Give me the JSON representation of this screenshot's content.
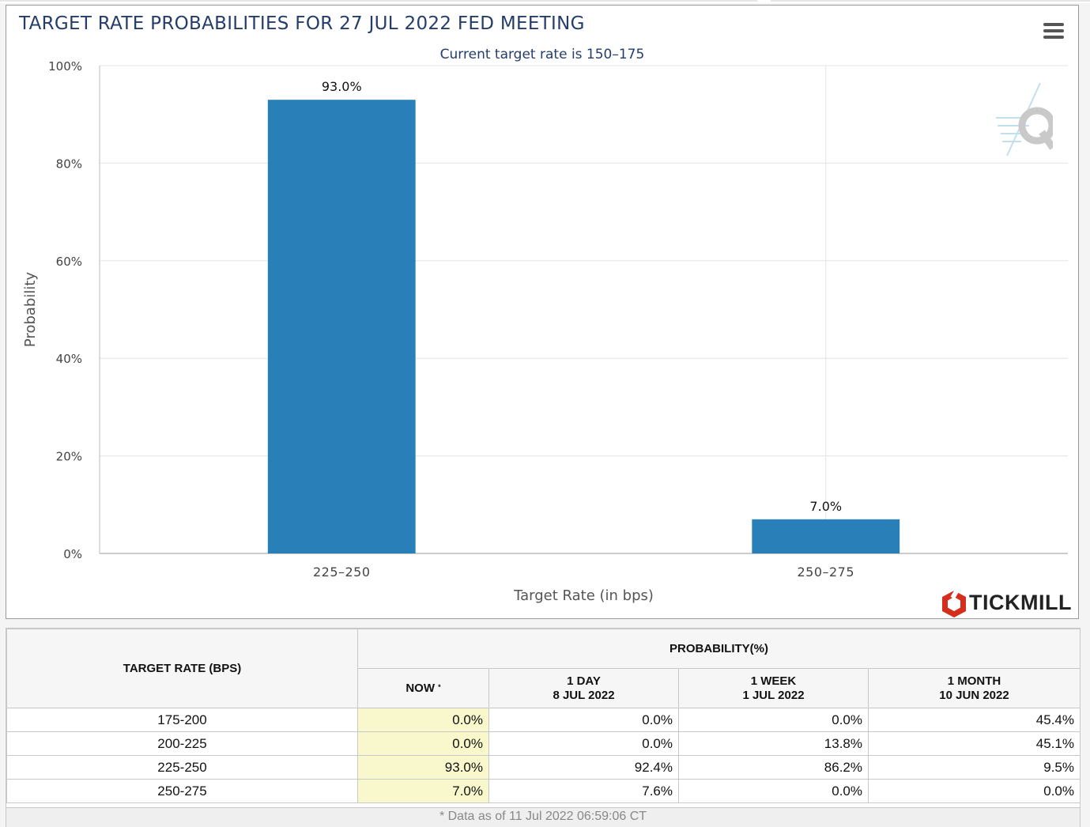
{
  "title": "TARGET RATE PROBABILITIES FOR 27 JUL 2022 FED MEETING",
  "subtitle": "Current target rate is 150–175",
  "menu_icon": "hamburger-menu-icon",
  "brand": "TICKMILL",
  "colors": {
    "bar": "#2980b9",
    "title": "#253d6b",
    "now_column": "#f8f8cc",
    "brand_mark": "#d42e1c"
  },
  "chart_data": {
    "type": "bar",
    "title": "TARGET RATE PROBABILITIES FOR 27 JUL 2022 FED MEETING",
    "subtitle": "Current target rate is 150–175",
    "categories": [
      "225–250",
      "250–275"
    ],
    "values": [
      93.0,
      7.0
    ],
    "data_labels": [
      "93.0%",
      "7.0%"
    ],
    "xlabel": "Target Rate (in bps)",
    "ylabel": "Probability",
    "ylim": [
      0,
      100
    ],
    "yticks": [
      0,
      20,
      40,
      60,
      80,
      100
    ],
    "ytick_labels": [
      "0%",
      "20%",
      "40%",
      "60%",
      "80%",
      "100%"
    ],
    "grid": true,
    "legend": "none"
  },
  "table": {
    "target_header": "TARGET RATE (BPS)",
    "prob_header": "PROBABILITY(%)",
    "now_header": "NOW",
    "now_marker": "*",
    "day_header": "1 DAY",
    "day_date": "8 JUL 2022",
    "week_header": "1 WEEK",
    "week_date": "1 JUL 2022",
    "month_header": "1 MONTH",
    "month_date": "10 JUN 2022",
    "rows": [
      {
        "rate": "175-200",
        "now": "0.0%",
        "day": "0.0%",
        "week": "0.0%",
        "month": "45.4%"
      },
      {
        "rate": "200-225",
        "now": "0.0%",
        "day": "0.0%",
        "week": "13.8%",
        "month": "45.1%"
      },
      {
        "rate": "225-250",
        "now": "93.0%",
        "day": "92.4%",
        "week": "86.2%",
        "month": "9.5%"
      },
      {
        "rate": "250-275",
        "now": "7.0%",
        "day": "7.6%",
        "week": "0.0%",
        "month": "0.0%"
      }
    ],
    "footnote": "* Data as of 11 Jul 2022 06:59:06 CT"
  }
}
